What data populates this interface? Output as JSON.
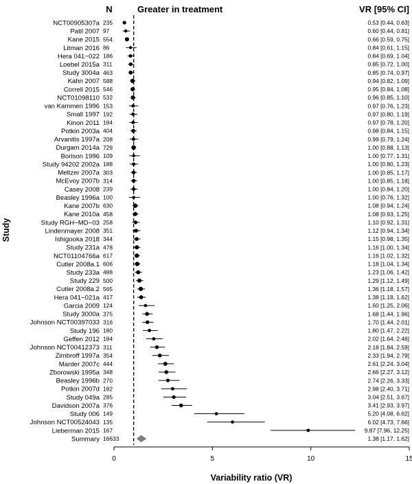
{
  "chart_data": {
    "type": "forest",
    "xlabel": "Variability ratio (VR)",
    "ylabel": "Study",
    "col_n_label": "N",
    "col_vr_label": "VR [95% CI]",
    "favor_label": "Greater in treatment",
    "x_ticks": [
      0,
      5,
      10,
      15
    ],
    "x_tick_labels": [
      "0",
      "5",
      "10",
      "15"
    ],
    "xlim": [
      0,
      15
    ],
    "reference_line": 1,
    "studies": [
      {
        "name": "NCT00905307a",
        "n": "235",
        "vr": 0.53,
        "lo": 0.44,
        "hi": 0.63,
        "label": "0.53 [0.44, 0.63]"
      },
      {
        "name": "Patil 2007",
        "n": "97",
        "vr": 0.6,
        "lo": 0.44,
        "hi": 0.81,
        "label": "0.60 [0.44, 0.81]"
      },
      {
        "name": "Kane 2015",
        "n": "554",
        "vr": 0.66,
        "lo": 0.59,
        "hi": 0.75,
        "label": "0.66 [0.59, 0.75]"
      },
      {
        "name": "Litman 2016",
        "n": "86",
        "vr": 0.84,
        "lo": 0.61,
        "hi": 1.15,
        "label": "0.84 [0.61, 1.15]"
      },
      {
        "name": "Hera 041−022",
        "n": "186",
        "vr": 0.84,
        "lo": 0.69,
        "hi": 1.04,
        "label": "0.84 [0.69, 1.04]"
      },
      {
        "name": "Loebel 2015a",
        "n": "311",
        "vr": 0.85,
        "lo": 0.72,
        "hi": 1.0,
        "label": "0.85 [0.72, 1.00]"
      },
      {
        "name": "Study 3004a",
        "n": "463",
        "vr": 0.85,
        "lo": 0.74,
        "hi": 0.97,
        "label": "0.85 [0.74, 0.97]"
      },
      {
        "name": "Kahn 2007",
        "n": "588",
        "vr": 0.94,
        "lo": 0.82,
        "hi": 1.09,
        "label": "0.94 [0.82, 1.09]"
      },
      {
        "name": "Correll 2015",
        "n": "546",
        "vr": 0.95,
        "lo": 0.84,
        "hi": 1.08,
        "label": "0.95 [0.84, 1.08]"
      },
      {
        "name": "NCT01098110",
        "n": "532",
        "vr": 0.96,
        "lo": 0.85,
        "hi": 1.1,
        "label": "0.96 [0.85, 1.10]"
      },
      {
        "name": "van Kammen 1996",
        "n": "153",
        "vr": 0.97,
        "lo": 0.76,
        "hi": 1.23,
        "label": "0.97 [0.76, 1.23]"
      },
      {
        "name": "Small 1997",
        "n": "192",
        "vr": 0.97,
        "lo": 0.8,
        "hi": 1.19,
        "label": "0.97 [0.80, 1.19]"
      },
      {
        "name": "Kinon 2011",
        "n": "184",
        "vr": 0.97,
        "lo": 0.78,
        "hi": 1.2,
        "label": "0.97 [0.78, 1.20]"
      },
      {
        "name": "Potkin 2003a",
        "n": "404",
        "vr": 0.98,
        "lo": 0.84,
        "hi": 1.15,
        "label": "0.98 [0.84, 1.15]"
      },
      {
        "name": "Arvanitis 1997a",
        "n": "208",
        "vr": 0.99,
        "lo": 0.79,
        "hi": 1.24,
        "label": "0.99 [0.79, 1.24]"
      },
      {
        "name": "Durgam 2014a",
        "n": "729",
        "vr": 1.0,
        "lo": 0.88,
        "hi": 1.13,
        "label": "1.00 [0.88, 1.13]"
      },
      {
        "name": "Borison 1996",
        "n": "109",
        "vr": 1.0,
        "lo": 0.77,
        "hi": 1.31,
        "label": "1.00 [0.77, 1.31]"
      },
      {
        "name": "Study 94202 2002a",
        "n": "188",
        "vr": 1.0,
        "lo": 0.8,
        "hi": 1.23,
        "label": "1.00 [0.80, 1.23]"
      },
      {
        "name": "Meltzer 2007a",
        "n": "303",
        "vr": 1.0,
        "lo": 0.85,
        "hi": 1.17,
        "label": "1.00 [0.85, 1.17]"
      },
      {
        "name": "McEvoy 2007b",
        "n": "314",
        "vr": 1.0,
        "lo": 0.85,
        "hi": 1.18,
        "label": "1.00 [0.85, 1.18]"
      },
      {
        "name": "Casey 2008",
        "n": "239",
        "vr": 1.0,
        "lo": 0.84,
        "hi": 1.2,
        "label": "1.00 [0.84, 1.20]"
      },
      {
        "name": "Beasley 1996a",
        "n": "100",
        "vr": 1.0,
        "lo": 0.76,
        "hi": 1.32,
        "label": "1.00 [0.76, 1.32]"
      },
      {
        "name": "Kane 2007b",
        "n": "630",
        "vr": 1.08,
        "lo": 0.94,
        "hi": 1.24,
        "label": "1.08 [0.94, 1.24]"
      },
      {
        "name": "Kane 2010a",
        "n": "458",
        "vr": 1.08,
        "lo": 0.93,
        "hi": 1.25,
        "label": "1.08 [0.93, 1.25]"
      },
      {
        "name": "Study RGH−MD−03",
        "n": "258",
        "vr": 1.1,
        "lo": 0.92,
        "hi": 1.31,
        "label": "1.10 [0.92, 1.31]"
      },
      {
        "name": "Lindenmayer 2008",
        "n": "351",
        "vr": 1.12,
        "lo": 0.94,
        "hi": 1.34,
        "label": "1.12 [0.94, 1.34]"
      },
      {
        "name": "Ishigooka 2018",
        "n": "344",
        "vr": 1.15,
        "lo": 0.98,
        "hi": 1.35,
        "label": "1.15 [0.98, 1.35]"
      },
      {
        "name": "Study 231a",
        "n": "478",
        "vr": 1.16,
        "lo": 1.0,
        "hi": 1.34,
        "label": "1.16 [1.00, 1.34]"
      },
      {
        "name": "NCT01104766a",
        "n": "617",
        "vr": 1.16,
        "lo": 1.02,
        "hi": 1.32,
        "label": "1.16 [1.02, 1.32]"
      },
      {
        "name": "Cutler 2008a.1",
        "n": "606",
        "vr": 1.18,
        "lo": 1.04,
        "hi": 1.34,
        "label": "1.18 [1.04, 1.34]"
      },
      {
        "name": "Study 233a",
        "n": "488",
        "vr": 1.23,
        "lo": 1.06,
        "hi": 1.42,
        "label": "1.23 [1.06, 1.42]"
      },
      {
        "name": "Study 229",
        "n": "500",
        "vr": 1.29,
        "lo": 1.12,
        "hi": 1.49,
        "label": "1.29 [1.12, 1.49]"
      },
      {
        "name": "Cutler 2008a.2",
        "n": "565",
        "vr": 1.36,
        "lo": 1.18,
        "hi": 1.57,
        "label": "1.36 [1.18, 1.57]"
      },
      {
        "name": "Hera 041−021a",
        "n": "417",
        "vr": 1.38,
        "lo": 1.18,
        "hi": 1.62,
        "label": "1.38 [1.18, 1.62]"
      },
      {
        "name": "Garcia 2009",
        "n": "124",
        "vr": 1.6,
        "lo": 1.25,
        "hi": 2.06,
        "label": "1.60 [1.25, 2.06]"
      },
      {
        "name": "Study 3000a",
        "n": "375",
        "vr": 1.68,
        "lo": 1.44,
        "hi": 1.96,
        "label": "1.68 [1.44, 1.96]"
      },
      {
        "name": "Johnson NCT00397033",
        "n": "316",
        "vr": 1.7,
        "lo": 1.44,
        "hi": 2.01,
        "label": "1.70 [1.44, 2.01]"
      },
      {
        "name": "Study 196",
        "n": "180",
        "vr": 1.8,
        "lo": 1.47,
        "hi": 2.22,
        "label": "1.80 [1.47, 2.22]"
      },
      {
        "name": "Geffen 2012",
        "n": "184",
        "vr": 2.02,
        "lo": 1.64,
        "hi": 2.48,
        "label": "2.02 [1.64, 2.48]"
      },
      {
        "name": "Johnson NCT00412373",
        "n": "311",
        "vr": 2.18,
        "lo": 1.84,
        "hi": 2.59,
        "label": "2.18 [1.84, 2.59]"
      },
      {
        "name": "Zimbroff 1997a",
        "n": "354",
        "vr": 2.33,
        "lo": 1.94,
        "hi": 2.79,
        "label": "2.33 [1.94, 2.79]"
      },
      {
        "name": "Marder 2007c",
        "n": "444",
        "vr": 2.61,
        "lo": 2.24,
        "hi": 3.04,
        "label": "2.61 [2.24, 3.04]"
      },
      {
        "name": "Zborowski 1995a",
        "n": "348",
        "vr": 2.66,
        "lo": 2.27,
        "hi": 3.12,
        "label": "2.66 [2.27, 3.12]"
      },
      {
        "name": "Beasley 1996b",
        "n": "270",
        "vr": 2.74,
        "lo": 2.26,
        "hi": 3.33,
        "label": "2.74 [2.26, 3.33]"
      },
      {
        "name": "Potkin 2007d",
        "n": "182",
        "vr": 2.98,
        "lo": 2.4,
        "hi": 3.71,
        "label": "2.98 [2.40, 3.71]"
      },
      {
        "name": "Study 049a",
        "n": "285",
        "vr": 3.04,
        "lo": 2.51,
        "hi": 3.67,
        "label": "3.04 [2.51, 3.67]"
      },
      {
        "name": "Davidson 2007a",
        "n": "376",
        "vr": 3.41,
        "lo": 2.93,
        "hi": 3.97,
        "label": "3.41 [2.93, 3.97]"
      },
      {
        "name": "Study 006",
        "n": "149",
        "vr": 5.2,
        "lo": 4.08,
        "hi": 6.62,
        "label": "5.20 [4.08, 6.62]"
      },
      {
        "name": "Johnson NCT00524043",
        "n": "135",
        "vr": 6.02,
        "lo": 4.73,
        "hi": 7.66,
        "label": "6.02 [4.73, 7.66]"
      },
      {
        "name": "Lieberman 2015",
        "n": "167",
        "vr": 9.87,
        "lo": 7.96,
        "hi": 12.25,
        "label": "9.87 [7.96, 12.25]"
      }
    ],
    "summary": {
      "name": "Summary",
      "n": "16633",
      "vr": 1.38,
      "lo": 1.17,
      "hi": 1.62,
      "label": "1.38 [1.17, 1.62]"
    },
    "colors": {
      "marker": "#000000",
      "summary": "#7f7f7f"
    }
  }
}
